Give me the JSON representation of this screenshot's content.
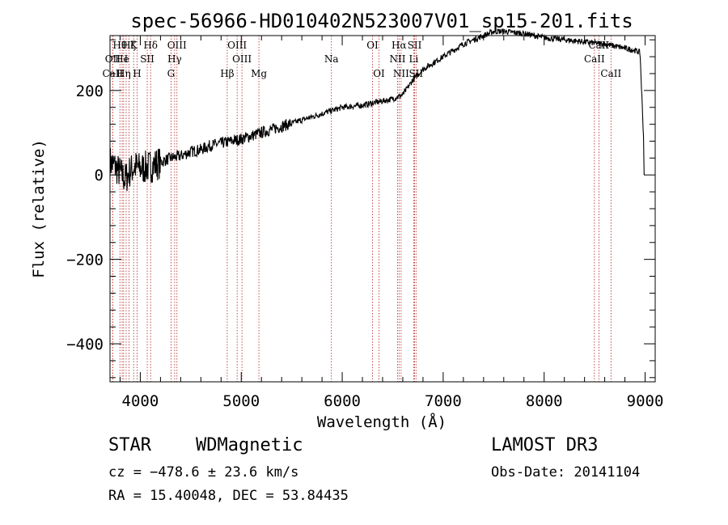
{
  "chart_data": {
    "type": "line",
    "title": "spec-56966-HD010402N523007V01_sp15-201.fits",
    "xlabel": "Wavelength (Å)",
    "ylabel": "Flux (relative)",
    "xlim": [
      3700,
      9100
    ],
    "ylim": [
      -490,
      330
    ],
    "xticks": [
      4000,
      5000,
      6000,
      7000,
      8000,
      9000
    ],
    "yticks": [
      -400,
      -200,
      0,
      200
    ],
    "series": [
      {
        "x": [
          3700,
          3750,
          3800,
          3850,
          3900,
          3950,
          4000,
          4100,
          4200,
          4300,
          4400,
          4500,
          4600,
          4700,
          4800,
          4900,
          5000,
          5200,
          5400,
          5600,
          5800,
          6000,
          6200,
          6400,
          6500,
          6600,
          6700,
          6800,
          6900,
          7000,
          7200,
          7400,
          7500,
          7600,
          7800,
          8000,
          8200,
          8400,
          8600,
          8800,
          8900,
          8950,
          9000
        ],
        "y": [
          30,
          20,
          5,
          -10,
          10,
          20,
          15,
          20,
          30,
          40,
          45,
          55,
          60,
          70,
          75,
          80,
          85,
          100,
          115,
          130,
          145,
          160,
          165,
          175,
          180,
          190,
          225,
          250,
          265,
          280,
          310,
          330,
          340,
          340,
          335,
          325,
          320,
          315,
          310,
          300,
          295,
          290,
          0
        ]
      }
    ],
    "spectral_lines": [
      {
        "label": "Hθ",
        "wavelength": 3798,
        "row": 1
      },
      {
        "label": "Hζ",
        "wavelength": 3889,
        "row": 1
      },
      {
        "label": "K",
        "wavelength": 3934,
        "row": 1
      },
      {
        "label": "Hδ",
        "wavelength": 4102,
        "row": 1
      },
      {
        "label": "OIII",
        "wavelength": 4363,
        "row": 1
      },
      {
        "label": "OIII",
        "wavelength": 4959,
        "row": 1
      },
      {
        "label": "OI",
        "wavelength": 6300,
        "row": 1
      },
      {
        "label": "Hα",
        "wavelength": 6563,
        "row": 1
      },
      {
        "label": "SII",
        "wavelength": 6717,
        "row": 1
      },
      {
        "label": "CaII",
        "wavelength": 8542,
        "row": 1
      },
      {
        "label": "OII",
        "wavelength": 3727,
        "row": 2
      },
      {
        "label": "He",
        "wavelength": 3820,
        "row": 2
      },
      {
        "label": "I",
        "wavelength": 3860,
        "row": 2
      },
      {
        "label": "SII",
        "wavelength": 4069,
        "row": 2
      },
      {
        "label": "Hγ",
        "wavelength": 4340,
        "row": 2
      },
      {
        "label": "OIII",
        "wavelength": 5007,
        "row": 2
      },
      {
        "label": "Na",
        "wavelength": 5893,
        "row": 2
      },
      {
        "label": "NII",
        "wavelength": 6548,
        "row": 2
      },
      {
        "label": "Li",
        "wavelength": 6708,
        "row": 2
      },
      {
        "label": "CaII",
        "wavelength": 8498,
        "row": 2
      },
      {
        "label": "CaII",
        "wavelength": 3727,
        "row": 3
      },
      {
        "label": "Hη",
        "wavelength": 3835,
        "row": 3
      },
      {
        "label": "H",
        "wavelength": 3968,
        "row": 3
      },
      {
        "label": "G",
        "wavelength": 4304,
        "row": 3
      },
      {
        "label": "Hβ",
        "wavelength": 4861,
        "row": 3
      },
      {
        "label": "Mg",
        "wavelength": 5175,
        "row": 3
      },
      {
        "label": "OI",
        "wavelength": 6364,
        "row": 3
      },
      {
        "label": "NII",
        "wavelength": 6583,
        "row": 3
      },
      {
        "label": "SII",
        "wavelength": 6731,
        "row": 3
      },
      {
        "label": "CaII",
        "wavelength": 8662,
        "row": 3
      }
    ],
    "line_color": "#000000",
    "marker_color": "#b22222"
  },
  "footer": {
    "class_label": "STAR",
    "subclass": "WDMagnetic",
    "survey": "LAMOST DR3",
    "cz": "cz = −478.6 ± 23.6 km/s",
    "obs_date": "Obs-Date: 20141104",
    "radec": "RA =  15.40048, DEC =  53.84435"
  }
}
